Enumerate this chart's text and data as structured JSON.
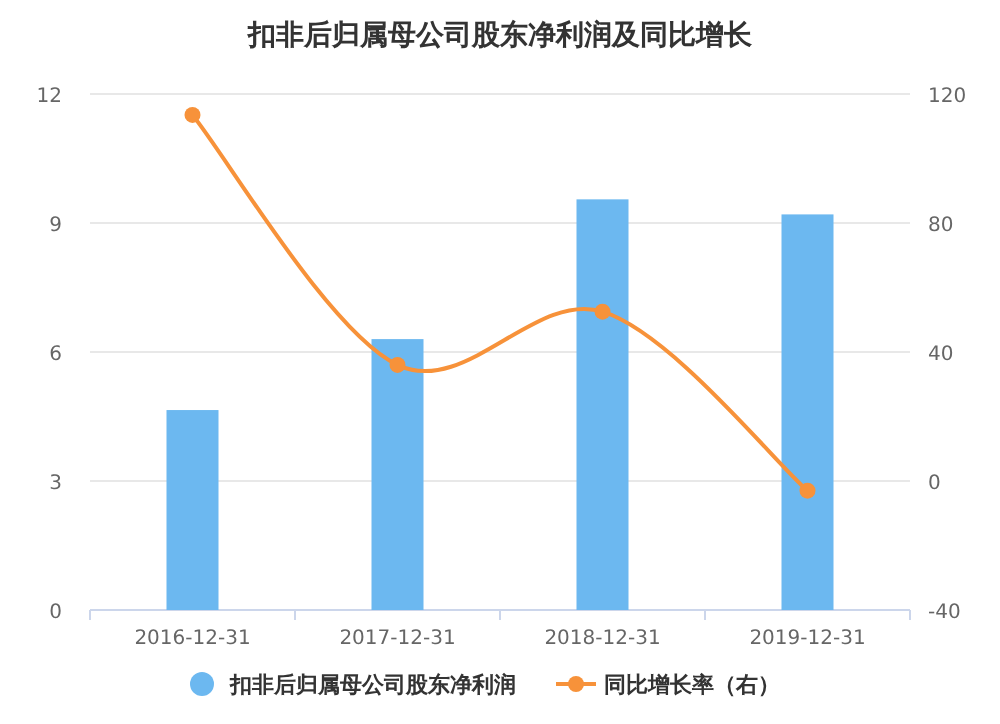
{
  "chart_data": {
    "type": "bar",
    "title": "扣非后归属母公司股东净利润及同比增长",
    "categories": [
      "2016-12-31",
      "2017-12-31",
      "2018-12-31",
      "2019-12-31"
    ],
    "series": [
      {
        "name": "扣非后归属母公司股东净利润",
        "color": "#6cb8f0",
        "values": [
          4.65,
          6.3,
          9.55,
          9.2
        ]
      },
      {
        "name": "同比增长率（右）",
        "type": "line",
        "axis": "y2",
        "color": "#f7923a",
        "values": [
          113.5,
          36,
          52.5,
          -3
        ]
      }
    ],
    "ylim": [
      0,
      12
    ],
    "yticks": [
      0,
      3,
      6,
      9,
      12
    ],
    "y2lim": [
      -40,
      120
    ],
    "y2ticks": [
      -40,
      0,
      40,
      80,
      120
    ],
    "grid": "y",
    "legend": "bottom",
    "marker": "circle"
  }
}
